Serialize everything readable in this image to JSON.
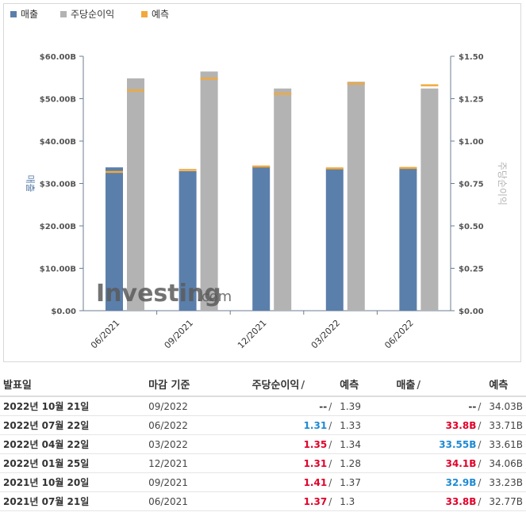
{
  "legend": [
    {
      "label": "매출",
      "color": "#5b7fab"
    },
    {
      "label": "주당순이익",
      "color": "#b3b3b3"
    },
    {
      "label": "예측",
      "color": "#f2a93b"
    }
  ],
  "watermark": {
    "brand": "Investing",
    "suffix": ".com"
  },
  "chart_data": {
    "type": "bar",
    "categories": [
      "06/2021",
      "09/2021",
      "12/2021",
      "03/2022",
      "06/2022"
    ],
    "y_left": {
      "label": "매출",
      "ticks": [
        "$0.00",
        "$10.00B",
        "$20.00B",
        "$30.00B",
        "$40.00B",
        "$50.00B",
        "$60.00B"
      ],
      "range": [
        0,
        60
      ]
    },
    "y_right": {
      "label": "주당순이익",
      "ticks": [
        "$0.00",
        "$0.25",
        "$0.50",
        "$0.75",
        "$1.00",
        "$1.25",
        "$1.50"
      ],
      "range": [
        0,
        1.5
      ]
    },
    "series": [
      {
        "name": "매출",
        "axis": "left",
        "values": [
          33.8,
          32.9,
          34.1,
          33.55,
          33.8
        ]
      },
      {
        "name": "주당순이익",
        "axis": "right",
        "values": [
          1.37,
          1.41,
          1.31,
          1.35,
          1.31
        ]
      },
      {
        "name": "예측",
        "role": "revenue-forecast",
        "axis": "left",
        "values": [
          32.77,
          33.23,
          34.06,
          33.61,
          33.71
        ]
      },
      {
        "name": "예측",
        "role": "eps-forecast",
        "axis": "right",
        "values": [
          1.3,
          1.37,
          1.28,
          1.34,
          1.33
        ]
      }
    ],
    "grid": false,
    "legend_position": "top-left"
  },
  "table": {
    "headers": {
      "date": "발표일",
      "period": "마감 기준",
      "eps": "주당순이익",
      "eps_forecast": "예측",
      "revenue": "매출",
      "revenue_forecast": "예측",
      "slash": "/"
    },
    "rows": [
      {
        "date": "2022년 10월 21일",
        "period": "09/2022",
        "eps": "--",
        "eps_class": "plain",
        "eps_forecast": "1.39",
        "revenue": "--",
        "revenue_class": "plain",
        "revenue_forecast": "34.03B"
      },
      {
        "date": "2022년 07월 22일",
        "period": "06/2022",
        "eps": "1.31",
        "eps_class": "blue",
        "eps_forecast": "1.33",
        "revenue": "33.8B",
        "revenue_class": "red",
        "revenue_forecast": "33.71B"
      },
      {
        "date": "2022년 04월 22일",
        "period": "03/2022",
        "eps": "1.35",
        "eps_class": "red",
        "eps_forecast": "1.34",
        "revenue": "33.55B",
        "revenue_class": "blue",
        "revenue_forecast": "33.61B"
      },
      {
        "date": "2022년 01월 25일",
        "period": "12/2021",
        "eps": "1.31",
        "eps_class": "red",
        "eps_forecast": "1.28",
        "revenue": "34.1B",
        "revenue_class": "red",
        "revenue_forecast": "34.06B"
      },
      {
        "date": "2021년 10월 20일",
        "period": "09/2021",
        "eps": "1.41",
        "eps_class": "red",
        "eps_forecast": "1.37",
        "revenue": "32.9B",
        "revenue_class": "blue",
        "revenue_forecast": "33.23B"
      },
      {
        "date": "2021년 07월 21일",
        "period": "06/2021",
        "eps": "1.37",
        "eps_class": "red",
        "eps_forecast": "1.3",
        "revenue": "33.8B",
        "revenue_class": "red",
        "revenue_forecast": "32.77B"
      }
    ]
  }
}
